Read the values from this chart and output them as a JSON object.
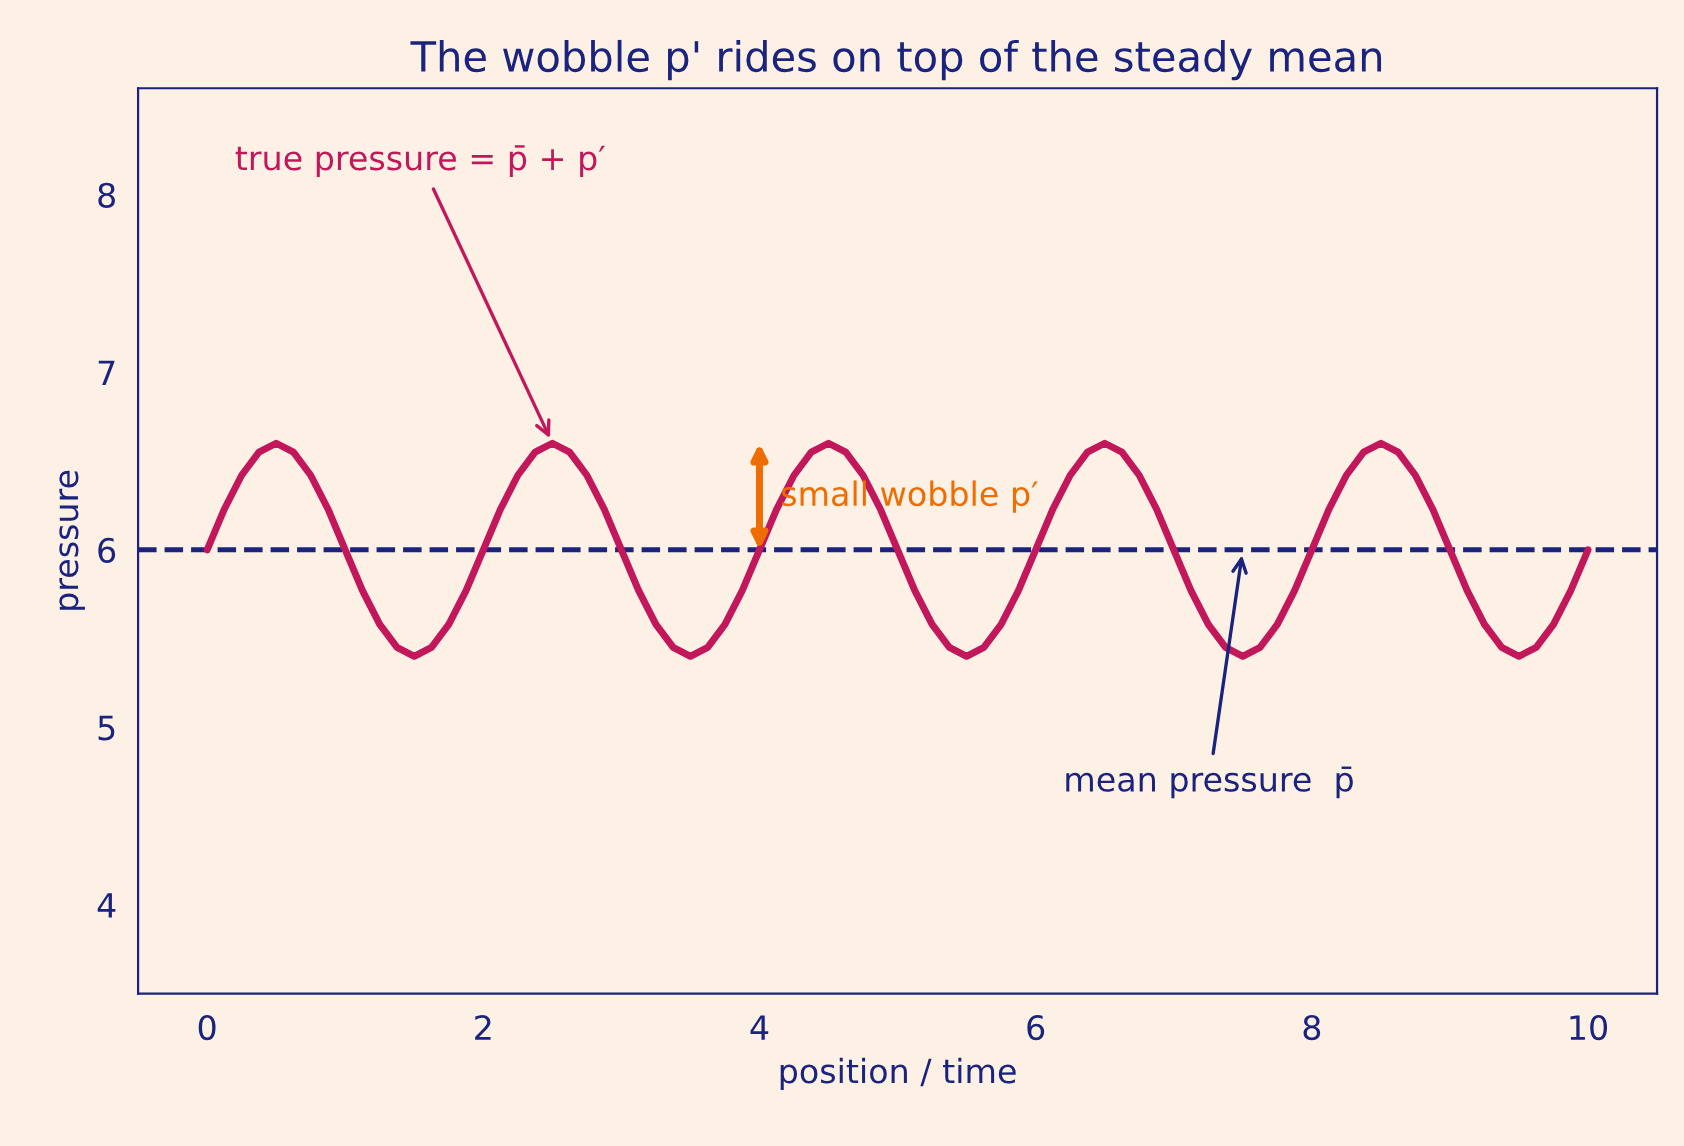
{
  "chart_data": {
    "type": "line",
    "title": "The wobble p' rides on top of the steady mean",
    "xlabel": "position / time",
    "ylabel": "pressure",
    "x": [
      0,
      0.125,
      0.25,
      0.375,
      0.5,
      0.625,
      0.75,
      0.875,
      1,
      1.125,
      1.25,
      1.375,
      1.5,
      1.625,
      1.75,
      1.875,
      2,
      2.125,
      2.25,
      2.375,
      2.5,
      2.625,
      2.75,
      2.875,
      3,
      3.125,
      3.25,
      3.375,
      3.5,
      3.625,
      3.75,
      3.875,
      4,
      4.125,
      4.25,
      4.375,
      4.5,
      4.625,
      4.75,
      4.875,
      5,
      5.125,
      5.25,
      5.375,
      5.5,
      5.625,
      5.75,
      5.875,
      6,
      6.125,
      6.25,
      6.375,
      6.5,
      6.625,
      6.75,
      6.875,
      7,
      7.125,
      7.25,
      7.375,
      7.5,
      7.625,
      7.75,
      7.875,
      8,
      8.125,
      8.25,
      8.375,
      8.5,
      8.625,
      8.75,
      8.875,
      9,
      9.125,
      9.25,
      9.375,
      9.5,
      9.625,
      9.75,
      9.875,
      10
    ],
    "series": [
      {
        "color": "#c2185b",
        "values": [
          6,
          6.23,
          6.42,
          6.55,
          6.6,
          6.55,
          6.42,
          6.23,
          6,
          5.77,
          5.58,
          5.45,
          5.4,
          5.45,
          5.58,
          5.77,
          6,
          6.23,
          6.42,
          6.55,
          6.6,
          6.55,
          6.42,
          6.23,
          6,
          5.77,
          5.58,
          5.45,
          5.4,
          5.45,
          5.58,
          5.77,
          6,
          6.23,
          6.42,
          6.55,
          6.6,
          6.55,
          6.42,
          6.23,
          6,
          5.77,
          5.58,
          5.45,
          5.4,
          5.45,
          5.58,
          5.77,
          6,
          6.23,
          6.42,
          6.55,
          6.6,
          6.55,
          6.42,
          6.23,
          6,
          5.77,
          5.58,
          5.45,
          5.4,
          5.45,
          5.58,
          5.77,
          6,
          6.23,
          6.42,
          6.55,
          6.6,
          6.55,
          6.42,
          6.23,
          6,
          5.77,
          5.58,
          5.45,
          5.4,
          5.45,
          5.58,
          5.77,
          6
        ]
      }
    ],
    "ref_lines": [
      {
        "axis": "y",
        "value": 6,
        "color": "#1a237e",
        "line_style": "dashed"
      }
    ],
    "annotations": [
      {
        "text": "true pressure = p̄ + p′",
        "x": 2.5,
        "y": 6.6
      },
      "small wobble p′",
      {
        "text": "mean pressure  p̄",
        "x": 7.5,
        "y": 6
      }
    ],
    "xlim": [
      -0.5,
      10.5
    ],
    "ylim": [
      3.5,
      8.6
    ],
    "xticks": [
      0,
      2,
      4,
      6,
      8,
      10
    ],
    "yticks": [
      4,
      5,
      6,
      7,
      8
    ],
    "line_style": "solid",
    "marker": "none",
    "grid": false
  }
}
